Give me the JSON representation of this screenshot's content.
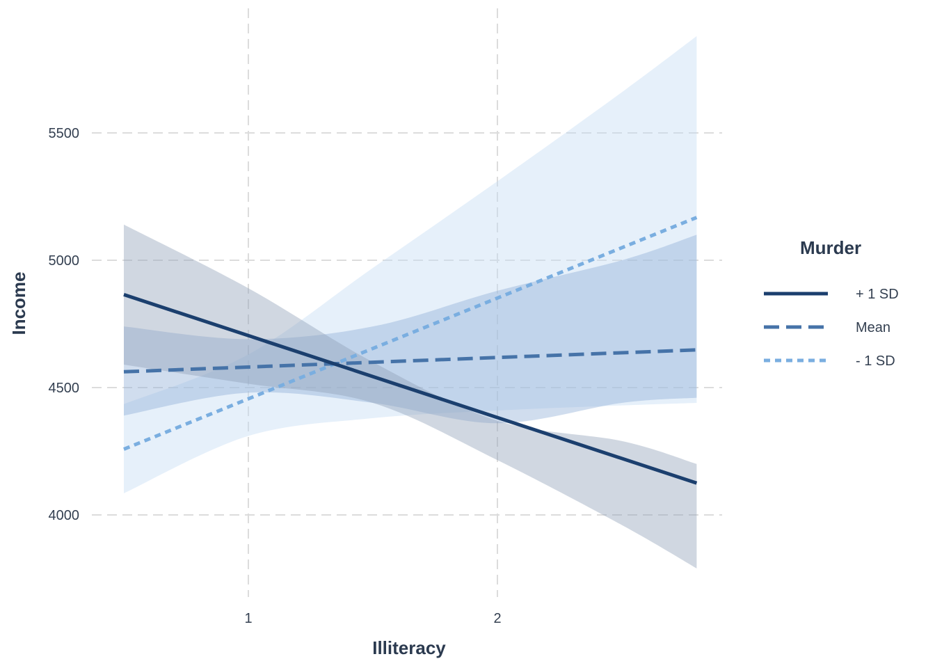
{
  "chart_data": {
    "type": "line",
    "xlabel": "Illiteracy",
    "ylabel": "Income",
    "xlim": [
      0.5,
      2.8
    ],
    "ylim": [
      3700,
      5900
    ],
    "x_ticks": [
      1,
      2
    ],
    "y_ticks": [
      4000,
      4500,
      5000,
      5500
    ],
    "grid": true,
    "legend": {
      "title": "Murder",
      "position": "right"
    },
    "series": [
      {
        "name": "+ 1 SD",
        "color": "#1b3f6e",
        "dash": "solid",
        "band_color": "#8e9fb8",
        "x": [
          0.5,
          2.8
        ],
        "y": [
          4865,
          4125
        ],
        "lower": [
          [
            0.5,
            4590
          ],
          [
            1.0,
            4515
          ],
          [
            1.5,
            4440
          ],
          [
            2.0,
            4215
          ],
          [
            2.5,
            3960
          ],
          [
            2.8,
            3790
          ]
        ],
        "upper": [
          [
            0.5,
            5140
          ],
          [
            1.0,
            4890
          ],
          [
            1.5,
            4600
          ],
          [
            2.0,
            4370
          ],
          [
            2.5,
            4290
          ],
          [
            2.8,
            4200
          ]
        ]
      },
      {
        "name": "Mean",
        "color": "#4673a8",
        "dash": "dashed",
        "band_color": "#8eaed6",
        "x": [
          0.5,
          2.8
        ],
        "y": [
          4562,
          4648
        ],
        "lower": [
          [
            0.5,
            4390
          ],
          [
            1.0,
            4480
          ],
          [
            1.5,
            4440
          ],
          [
            2.0,
            4360
          ],
          [
            2.5,
            4440
          ],
          [
            2.8,
            4460
          ]
        ],
        "upper": [
          [
            0.5,
            4740
          ],
          [
            1.0,
            4690
          ],
          [
            1.5,
            4740
          ],
          [
            2.0,
            4880
          ],
          [
            2.5,
            5000
          ],
          [
            2.8,
            5100
          ]
        ]
      },
      {
        "name": "- 1 SD",
        "color": "#7aaee0",
        "dash": "dotted",
        "band_color": "#c4dbf3",
        "x": [
          0.5,
          2.8
        ],
        "y": [
          4258,
          5168
        ],
        "lower": [
          [
            0.5,
            4085
          ],
          [
            1.0,
            4310
          ],
          [
            1.5,
            4380
          ],
          [
            2.0,
            4410
          ],
          [
            2.5,
            4430
          ],
          [
            2.8,
            4440
          ]
        ],
        "upper": [
          [
            0.5,
            4435
          ],
          [
            1.0,
            4630
          ],
          [
            1.5,
            4970
          ],
          [
            2.0,
            5310
          ],
          [
            2.5,
            5660
          ],
          [
            2.8,
            5880
          ]
        ]
      }
    ]
  }
}
